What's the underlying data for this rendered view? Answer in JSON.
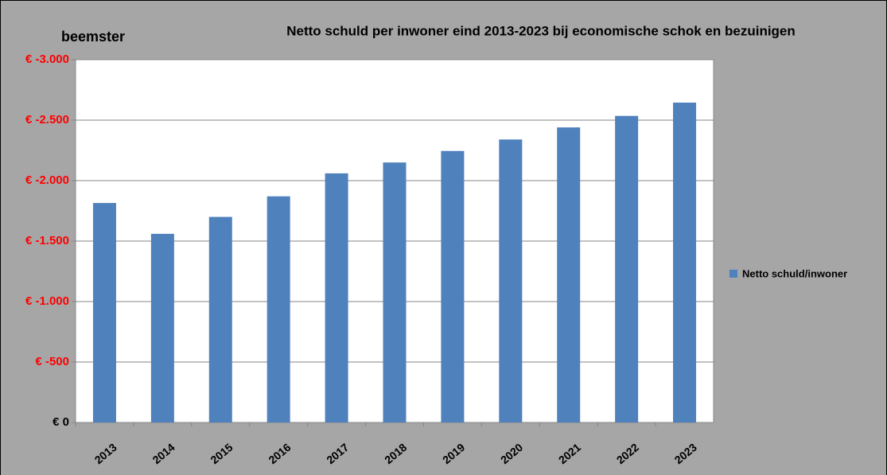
{
  "chart_data": {
    "type": "bar",
    "title": "Netto schuld per inwoner eind 2013-2023 bij economische schok  en bezuinigen",
    "subtitle": "beemster",
    "categories": [
      "2013",
      "2014",
      "2015",
      "2016",
      "2017",
      "2018",
      "2019",
      "2020",
      "2021",
      "2022",
      "2023"
    ],
    "series": [
      {
        "name": "Netto schuld/inwoner",
        "color": "#4f81bd",
        "values": [
          -1815,
          -1560,
          -1700,
          -1870,
          -2060,
          -2150,
          -2245,
          -2340,
          -2440,
          -2535,
          -2645
        ]
      }
    ],
    "ylim": [
      0,
      -3000
    ],
    "yticks": [
      {
        "value": 0,
        "label": "€ 0"
      },
      {
        "value": -500,
        "label": "€ -500"
      },
      {
        "value": -1000,
        "label": "€ -1.000"
      },
      {
        "value": -1500,
        "label": "€ -1.500"
      },
      {
        "value": -2000,
        "label": "€ -2.000"
      },
      {
        "value": -2500,
        "label": "€ -2.500"
      },
      {
        "value": -3000,
        "label": "€ -3.000"
      }
    ],
    "ytick_label_colors": [
      "#000000",
      "#ff0000",
      "#ff0000",
      "#ff0000",
      "#ff0000",
      "#ff0000",
      "#ff0000"
    ],
    "grid": true,
    "legend": "right"
  }
}
